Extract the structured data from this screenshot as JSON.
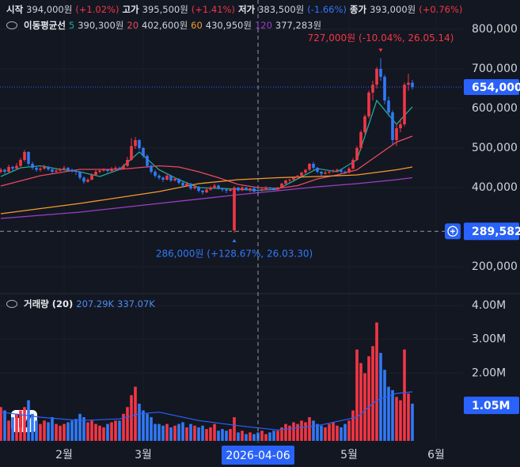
{
  "chart_data": {
    "type": "candlestick",
    "ohlc_legend": [
      {
        "label": "시작",
        "value": "394,000원",
        "change": "(+1.02%)",
        "color": "#f23645"
      },
      {
        "label": "고가",
        "value": "395,500원",
        "change": "(+1.41%)",
        "color": "#f23645"
      },
      {
        "label": "저가",
        "value": "383,500원",
        "change": "(-1.66%)",
        "color": "#3179f5"
      },
      {
        "label": "종가",
        "value": "393,000원",
        "change": "(+0.76%)",
        "color": "#f23645"
      }
    ],
    "ma_title": "이동평균선",
    "xlim": [
      -0.2,
      116.8
    ],
    "xticks": [
      {
        "value": 16,
        "label": "2월"
      },
      {
        "value": 36,
        "label": "3월"
      },
      {
        "value": 88,
        "label": "5월"
      },
      {
        "value": 110,
        "label": "6월"
      }
    ],
    "ylim": [
      134000,
      874000
    ],
    "yticks": [
      {
        "value": 800000,
        "label": "800,000"
      },
      {
        "value": 700000,
        "label": "700,000"
      },
      {
        "value": 600000,
        "label": "600,000"
      },
      {
        "value": 500000,
        "label": "500,000"
      },
      {
        "value": 400000,
        "label": "400,000"
      },
      {
        "value": 200000,
        "label": "200,000"
      }
    ],
    "up_color": "#f23645",
    "down_color": "#3179f5",
    "open": [
      440000,
      445000,
      440000,
      452000,
      448000,
      455000,
      470000,
      490000,
      460000,
      450000,
      445000,
      448000,
      452000,
      446000,
      440000,
      443000,
      447000,
      450000,
      445000,
      442000,
      440000,
      425000,
      415000,
      420000,
      432000,
      440000,
      443000,
      445000,
      442000,
      448000,
      450000,
      448000,
      455000,
      470000,
      505000,
      520000,
      500000,
      480000,
      455000,
      440000,
      430000,
      425000,
      420000,
      430000,
      418000,
      422000,
      412000,
      405000,
      410000,
      398000,
      402000,
      392000,
      388000,
      395000,
      400000,
      405000,
      398000,
      395000,
      392000,
      292000,
      400000,
      393000,
      400000,
      395000,
      398000,
      394000,
      393000,
      396000,
      400000,
      398000,
      395000,
      400000,
      410000,
      418000,
      420000,
      425000,
      430000,
      438000,
      445000,
      460000,
      450000,
      440000,
      435000,
      438000,
      440000,
      442000,
      445000,
      440000,
      438000,
      448000,
      470000,
      500000,
      540000,
      580000,
      640000,
      660000,
      700000,
      680000,
      620000,
      590000,
      520000,
      550000,
      560000,
      660000,
      665000
    ],
    "high": [
      450000,
      448000,
      458000,
      455000,
      462000,
      475000,
      495000,
      492000,
      465000,
      455000,
      452000,
      458000,
      455000,
      450000,
      447000,
      450000,
      455000,
      452000,
      448000,
      444000,
      441000,
      428000,
      424000,
      436000,
      444000,
      447000,
      449000,
      447000,
      452000,
      455000,
      453000,
      460000,
      478000,
      525000,
      528000,
      522000,
      503000,
      484000,
      458000,
      445000,
      434000,
      428000,
      436000,
      432000,
      426000,
      424000,
      415000,
      414000,
      412000,
      406000,
      404000,
      394000,
      398000,
      404000,
      410000,
      407000,
      400000,
      397000,
      398000,
      404000,
      402000,
      404000,
      402000,
      400000,
      402000,
      395500,
      399000,
      404000,
      402000,
      400000,
      402000,
      412000,
      420000,
      422000,
      428000,
      432000,
      440000,
      447000,
      462000,
      465000,
      452000,
      442000,
      442000,
      444000,
      446000,
      448000,
      447000,
      443000,
      452000,
      475000,
      505000,
      545000,
      585000,
      645000,
      670000,
      705000,
      727000,
      685000,
      630000,
      595000,
      560000,
      575000,
      665000,
      688000,
      672000
    ],
    "low": [
      436000,
      435000,
      438000,
      442000,
      445000,
      452000,
      465000,
      455000,
      445000,
      440000,
      440000,
      445000,
      442000,
      436000,
      437000,
      440000,
      444000,
      441000,
      438000,
      432000,
      420000,
      410000,
      412000,
      418000,
      430000,
      436000,
      440000,
      438000,
      440000,
      445000,
      444000,
      446000,
      452000,
      468000,
      498000,
      495000,
      475000,
      450000,
      435000,
      425000,
      420000,
      414000,
      418000,
      414000,
      415000,
      408000,
      400000,
      402000,
      394000,
      395000,
      388000,
      382000,
      386000,
      392000,
      398000,
      395000,
      390000,
      386000,
      390000,
      286000,
      390000,
      391000,
      392000,
      388000,
      388000,
      383500,
      390000,
      394000,
      394000,
      392000,
      393000,
      398000,
      408000,
      412000,
      418000,
      422000,
      428000,
      434000,
      442000,
      445000,
      436000,
      430000,
      433000,
      434000,
      437000,
      440000,
      436000,
      434000,
      436000,
      446000,
      468000,
      495000,
      535000,
      575000,
      620000,
      650000,
      670000,
      610000,
      580000,
      510000,
      505000,
      540000,
      555000,
      645000,
      648000
    ],
    "close": [
      445000,
      440000,
      452000,
      448000,
      455000,
      470000,
      490000,
      460000,
      450000,
      445000,
      448000,
      452000,
      446000,
      440000,
      443000,
      447000,
      450000,
      445000,
      442000,
      440000,
      425000,
      415000,
      420000,
      432000,
      440000,
      443000,
      445000,
      442000,
      448000,
      450000,
      448000,
      455000,
      470000,
      505000,
      520000,
      500000,
      480000,
      455000,
      440000,
      430000,
      425000,
      420000,
      430000,
      418000,
      422000,
      412000,
      405000,
      410000,
      398000,
      402000,
      392000,
      388000,
      395000,
      400000,
      405000,
      398000,
      395000,
      392000,
      395000,
      400000,
      393000,
      400000,
      395000,
      398000,
      390000,
      393000,
      396000,
      400000,
      398000,
      395000,
      400000,
      410000,
      418000,
      420000,
      425000,
      430000,
      438000,
      445000,
      460000,
      450000,
      440000,
      435000,
      438000,
      440000,
      442000,
      445000,
      440000,
      438000,
      448000,
      470000,
      500000,
      540000,
      580000,
      640000,
      660000,
      700000,
      680000,
      620000,
      590000,
      520000,
      550000,
      560000,
      660000,
      665000,
      654000
    ],
    "moving_averages": [
      {
        "name": "5",
        "legend_value": "390,300원",
        "color": "#22ab94",
        "x": [
          0,
          5,
          10,
          15,
          20,
          25,
          30,
          35,
          40,
          45,
          50,
          55,
          60,
          65,
          70,
          75,
          80,
          85,
          90,
          95,
          100,
          104
        ],
        "values": [
          428000,
          450000,
          455000,
          446000,
          440000,
          428000,
          446000,
          490000,
          445000,
          420000,
          400000,
          398000,
          396000,
          393000,
          396000,
          422000,
          448000,
          440000,
          470000,
          620000,
          560000,
          604000
        ]
      },
      {
        "name": "20",
        "legend_value": "402,600원",
        "color": "#e84a5f",
        "x": [
          0,
          10,
          20,
          30,
          40,
          45,
          50,
          55,
          60,
          65,
          70,
          75,
          80,
          85,
          90,
          95,
          100,
          104
        ],
        "values": [
          404000,
          430000,
          446000,
          446000,
          455000,
          452000,
          440000,
          425000,
          408000,
          400000,
          398000,
          405000,
          422000,
          432000,
          445000,
          480000,
          515000,
          530000
        ]
      },
      {
        "name": "60",
        "legend_value": "430,950원",
        "color": "#f59b2e",
        "x": [
          0,
          20,
          40,
          50,
          60,
          70,
          80,
          90,
          100,
          104
        ],
        "values": [
          334000,
          360000,
          390000,
          410000,
          420000,
          425000,
          428000,
          432000,
          445000,
          452000
        ]
      },
      {
        "name": "120",
        "legend_value": "377,283원",
        "color": "#9c3fc4",
        "x": [
          0,
          20,
          40,
          60,
          70,
          80,
          90,
          100,
          104
        ],
        "values": [
          322000,
          338000,
          360000,
          382000,
          392000,
          402000,
          410000,
          420000,
          425000
        ]
      }
    ],
    "last_price": {
      "value": 654000,
      "label": "654,000"
    },
    "annotations": [
      {
        "text": "727,000원 (-10.04%, 26.05.14)",
        "x": 96,
        "y": 727000,
        "color": "#f23645"
      },
      {
        "text": "286,000원 (+128.67%, 26.03.30)",
        "x": 59,
        "y": 286000,
        "color": "#3179f5"
      }
    ],
    "crosshair": {
      "x": 65,
      "x_label": "2026-04-06",
      "price": {
        "value": 289582,
        "label": "289,582"
      },
      "volume": {
        "value": 1050000,
        "label": "1.05M"
      }
    },
    "volume": {
      "title": "거래량 (20)",
      "legend_values": [
        "207.29K",
        "337.07K"
      ],
      "ylim": [
        0,
        4304000
      ],
      "yticks": [
        {
          "value": 4000000,
          "label": "4.00M"
        },
        {
          "value": 3000000,
          "label": "3.00M"
        },
        {
          "value": 2000000,
          "label": "2.00M"
        }
      ],
      "values": [
        1000000,
        900000,
        600000,
        700000,
        800000,
        900000,
        1000000,
        1200000,
        800000,
        600000,
        500000,
        600000,
        550000,
        700000,
        500000,
        450000,
        500000,
        550000,
        600000,
        650000,
        800000,
        700000,
        550000,
        600000,
        500000,
        450000,
        400000,
        500000,
        550000,
        600000,
        600000,
        800000,
        1000000,
        1350000,
        1600000,
        1100000,
        900000,
        800000,
        700000,
        500000,
        500000,
        450000,
        500000,
        400000,
        450000,
        500000,
        550000,
        400000,
        500000,
        450000,
        400000,
        450000,
        350000,
        400000,
        500000,
        300000,
        350000,
        300000,
        350000,
        700000,
        250000,
        300000,
        200000,
        250000,
        200000,
        250000,
        300000,
        200000,
        250000,
        300000,
        300000,
        400000,
        500000,
        450000,
        550000,
        500000,
        600000,
        550000,
        700000,
        600000,
        500000,
        450000,
        400000,
        500000,
        550000,
        450000,
        400000,
        500000,
        600000,
        900000,
        2700000,
        2300000,
        2000000,
        2500000,
        2800000,
        3500000,
        2600000,
        2100000,
        1600000,
        1500000,
        1300000,
        1200000,
        2700000,
        1400000,
        1100000
      ],
      "ma": {
        "color": "#2962ff",
        "x": [
          0,
          10,
          20,
          30,
          35,
          40,
          50,
          60,
          70,
          80,
          90,
          95,
          100,
          104
        ],
        "values": [
          850000,
          700000,
          600000,
          650000,
          800000,
          850000,
          600000,
          450000,
          320000,
          450000,
          700000,
          1200000,
          1400000,
          1450000
        ]
      }
    }
  }
}
